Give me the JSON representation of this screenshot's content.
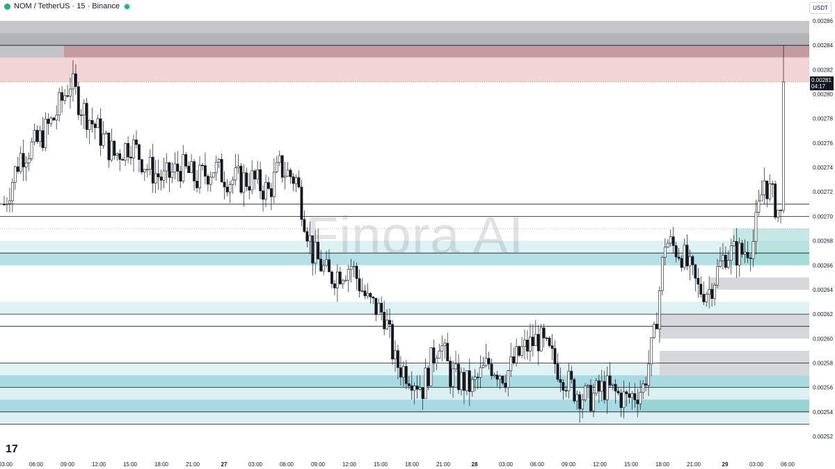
{
  "header": {
    "symbol": "NOM / TetherUS · 15 · Binance",
    "status_color": "#22ab94"
  },
  "currency_badge": "USDT",
  "watermark": "Finora AI",
  "price_tag": {
    "price": "0.00281",
    "countdown": "04:17"
  },
  "chart_data": {
    "type": "candlestick",
    "x_ticks": [
      "03:00",
      "06:00",
      "09:00",
      "12:00",
      "15:00",
      "18:00",
      "21:00",
      "27",
      "03:00",
      "06:00",
      "09:00",
      "12:00",
      "15:00",
      "18:00",
      "21:00",
      "28",
      "03:00",
      "06:00",
      "09:00",
      "12:00",
      "15:00",
      "18:00",
      "21:00",
      "29",
      "03:00",
      "06:00"
    ],
    "y_ticks": [
      "0.00286",
      "0.00284",
      "0.00282",
      "0.00280",
      "0.00278",
      "0.00276",
      "0.00274",
      "0.00272",
      "0.00270",
      "0.00268",
      "0.00266",
      "0.00264",
      "0.00262",
      "0.00260",
      "0.00258",
      "0.00256",
      "0.00254",
      "0.00252"
    ],
    "ylim": [
      0.00251,
      0.00287
    ],
    "price_waypoints": [
      [
        0,
        0.00271
      ],
      [
        6,
        0.00275
      ],
      [
        12,
        0.00276
      ],
      [
        18,
        0.00278
      ],
      [
        24,
        0.00281
      ],
      [
        28,
        0.00279
      ],
      [
        34,
        0.00277
      ],
      [
        40,
        0.00275
      ],
      [
        46,
        0.00276
      ],
      [
        52,
        0.00274
      ],
      [
        58,
        0.00273
      ],
      [
        64,
        0.00274
      ],
      [
        70,
        0.00273
      ],
      [
        76,
        0.00274
      ],
      [
        82,
        0.00273
      ],
      [
        90,
        0.00273
      ],
      [
        96,
        0.00272
      ],
      [
        100,
        0.00274
      ],
      [
        106,
        0.00273
      ],
      [
        112,
        0.00267
      ],
      [
        118,
        0.00265
      ],
      [
        126,
        0.00266
      ],
      [
        132,
        0.00263
      ],
      [
        138,
        0.00262
      ],
      [
        142,
        0.00258
      ],
      [
        148,
        0.00257
      ],
      [
        152,
        0.00256
      ],
      [
        158,
        0.0026
      ],
      [
        162,
        0.00257
      ],
      [
        170,
        0.00256
      ],
      [
        176,
        0.00258
      ],
      [
        182,
        0.00257
      ],
      [
        188,
        0.00259
      ],
      [
        194,
        0.0026
      ],
      [
        200,
        0.00258
      ],
      [
        206,
        0.00256
      ],
      [
        212,
        0.00255
      ],
      [
        218,
        0.00256
      ],
      [
        226,
        0.00255
      ],
      [
        232,
        0.00256
      ],
      [
        236,
        0.0026
      ],
      [
        240,
        0.00268
      ],
      [
        246,
        0.00267
      ],
      [
        252,
        0.00264
      ],
      [
        256,
        0.00264
      ],
      [
        262,
        0.00267
      ],
      [
        268,
        0.00267
      ],
      [
        272,
        0.00268
      ],
      [
        276,
        0.00273
      ],
      [
        280,
        0.00271
      ],
      [
        282,
        0.0027
      ],
      [
        283,
        0.00281
      ]
    ],
    "zones": [
      {
        "y1": 0.00286,
        "y2": 0.00285,
        "color": "#c6c7cb"
      },
      {
        "y1": 0.00285,
        "y2": 0.00284,
        "color": "#b3b4b8"
      },
      {
        "y1": 0.00284,
        "y2": 0.00283,
        "color": "#c39ca0"
      },
      {
        "y1": 0.00283,
        "y2": 0.00281,
        "color": "#f2d3d6"
      },
      {
        "y1": 0.00268,
        "y2": 0.00267,
        "color": "#def1f3"
      },
      {
        "y1": 0.00267,
        "y2": 0.00266,
        "color": "#b5e0e6"
      },
      {
        "y1": 0.00263,
        "y2": 0.00262,
        "color": "#def1f3"
      },
      {
        "y1": 0.00258,
        "y2": 0.00257,
        "color": "#e1f2f5"
      },
      {
        "y1": 0.00257,
        "y2": 0.00256,
        "color": "#a9dae2"
      },
      {
        "y1": 0.00256,
        "y2": 0.00255,
        "color": "#dcf0f3"
      },
      {
        "y1": 0.00255,
        "y2": 0.00254,
        "color": "#a9dae2"
      },
      {
        "y1": 0.00254,
        "y2": 0.00253,
        "color": "#dcf0f3"
      }
    ]
  }
}
